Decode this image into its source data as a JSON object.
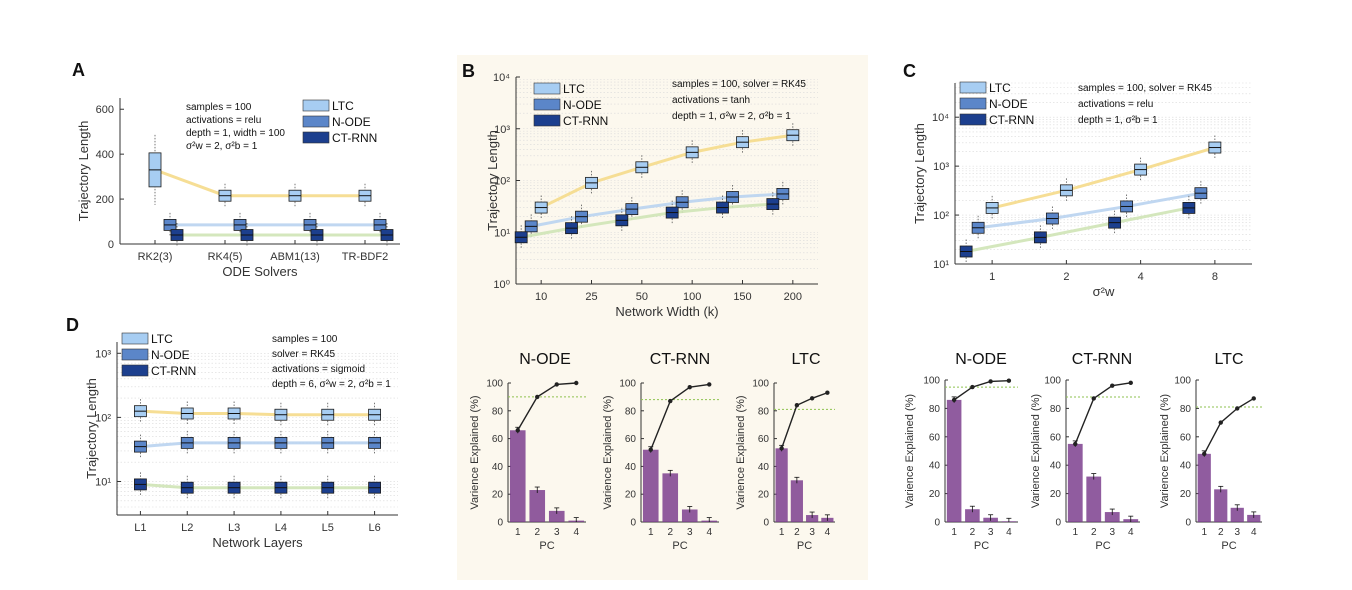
{
  "colors": {
    "ltc": "#a7cdf2",
    "node": "#5b86c9",
    "ctrnn": "#1c3f8e",
    "ltc_line": "#f5da8a",
    "node_line": "#b9d3ef",
    "ctrnn_line": "#cfe4b6",
    "bar": "#7c3f8e",
    "cum": "#222222",
    "thresh": "#8ec24f",
    "panelB_bg": "#fcf8ee"
  },
  "chart_data": [
    {
      "id": "A",
      "letter": "A",
      "type": "box",
      "xlabel": "ODE Solvers",
      "ylabel": "Trajectory Length",
      "categories": [
        "RK2(3)",
        "RK4(5)",
        "ABM1(13)",
        "TR-BDF2"
      ],
      "yscale": "linear",
      "ylim": [
        0,
        650
      ],
      "yticks": [
        "0",
        "200",
        "400",
        "600"
      ],
      "ytickvals": [
        0,
        200,
        400,
        600
      ],
      "annotations": [
        "samples = 100",
        "activations = relu",
        "depth = 1,  width = 100",
        "σ²w = 2,  σ²b = 1"
      ],
      "legend": [
        "LTC",
        "N-ODE",
        "CT-RNN"
      ],
      "series": [
        {
          "name": "LTC",
          "values": [
            330,
            215,
            215,
            215
          ]
        },
        {
          "name": "N-ODE",
          "values": [
            85,
            85,
            85,
            85
          ]
        },
        {
          "name": "CT-RNN",
          "values": [
            40,
            40,
            40,
            40
          ]
        }
      ]
    },
    {
      "id": "B",
      "letter": "B",
      "type": "box",
      "xlabel": "Network Width (k)",
      "ylabel": "Trajectory Length",
      "categories": [
        "10",
        "25",
        "50",
        "100",
        "150",
        "200"
      ],
      "yscale": "log",
      "ylim": [
        1,
        10000
      ],
      "yticks": [
        "10⁰",
        "10¹",
        "10²",
        "10³",
        "10⁴"
      ],
      "ytickvals": [
        1,
        10,
        100,
        1000,
        10000
      ],
      "annotations": [
        "samples = 100, solver = RK45",
        "activations = tanh",
        "depth = 1,  σ²w = 2,  σ²b = 1"
      ],
      "legend": [
        "LTC",
        "N-ODE",
        "CT-RNN"
      ],
      "series": [
        {
          "name": "LTC",
          "values": [
            30,
            90,
            180,
            350,
            550,
            750
          ]
        },
        {
          "name": "N-ODE",
          "values": [
            13,
            20,
            28,
            38,
            48,
            55
          ]
        },
        {
          "name": "CT-RNN",
          "values": [
            8,
            12,
            17,
            24,
            30,
            35
          ]
        }
      ]
    },
    {
      "id": "C",
      "letter": "C",
      "type": "box",
      "xlabel": "σ²w",
      "ylabel": "Trajectory Length",
      "categories": [
        "1",
        "2",
        "4",
        "8"
      ],
      "yscale": "log",
      "ylim": [
        10,
        50000
      ],
      "yticks": [
        "10¹",
        "10²",
        "10³",
        "10⁴"
      ],
      "ytickvals": [
        10,
        100,
        1000,
        10000
      ],
      "annotations": [
        "samples = 100, solver = RK45",
        "activations = relu",
        "depth = 1,  σ²b = 1"
      ],
      "legend": [
        "LTC",
        "N-ODE",
        "CT-RNN"
      ],
      "series": [
        {
          "name": "LTC",
          "values": [
            140,
            320,
            850,
            2400
          ]
        },
        {
          "name": "N-ODE",
          "values": [
            55,
            85,
            150,
            280
          ]
        },
        {
          "name": "CT-RNN",
          "values": [
            18,
            35,
            70,
            140
          ]
        }
      ]
    },
    {
      "id": "D",
      "letter": "D",
      "type": "box",
      "xlabel": "Network Layers",
      "ylabel": "Trajectory Length",
      "categories": [
        "L1",
        "L2",
        "L3",
        "L4",
        "L5",
        "L6"
      ],
      "yscale": "log",
      "ylim": [
        3,
        1500
      ],
      "yticks": [
        "10¹",
        "10²",
        "10³"
      ],
      "ytickvals": [
        10,
        100,
        1000
      ],
      "annotations": [
        "samples = 100",
        "solver = RK45",
        "activations = sigmoid",
        "depth = 6,  σ²w = 2,  σ²b = 1"
      ],
      "legend": [
        "LTC",
        "N-ODE",
        "CT-RNN"
      ],
      "series": [
        {
          "name": "LTC",
          "values": [
            125,
            115,
            115,
            110,
            110,
            110
          ]
        },
        {
          "name": "N-ODE",
          "values": [
            35,
            40,
            40,
            40,
            40,
            40
          ]
        },
        {
          "name": "CT-RNN",
          "values": [
            9,
            8,
            8,
            8,
            8,
            8
          ]
        }
      ]
    },
    {
      "id": "B-node",
      "type": "bar",
      "title": "N-ODE",
      "xlabel": "PC",
      "ylabel": "Varience Explained (%)",
      "categories": [
        "1",
        "2",
        "3",
        "4"
      ],
      "values": [
        66,
        23,
        8,
        1
      ],
      "cumulative": [
        66,
        90,
        99,
        100
      ],
      "threshold": 90,
      "ylim": [
        0,
        100
      ],
      "yticks": [
        0,
        20,
        40,
        60,
        80,
        100
      ]
    },
    {
      "id": "B-ctrnn",
      "type": "bar",
      "title": "CT-RNN",
      "xlabel": "PC",
      "ylabel": "Varience Explained (%)",
      "categories": [
        "1",
        "2",
        "3",
        "4"
      ],
      "values": [
        52,
        35,
        9,
        1
      ],
      "cumulative": [
        52,
        87,
        97,
        99
      ],
      "threshold": 88,
      "ylim": [
        0,
        100
      ],
      "yticks": [
        0,
        20,
        40,
        60,
        80,
        100
      ]
    },
    {
      "id": "B-ltc",
      "type": "bar",
      "title": "LTC",
      "xlabel": "PC",
      "ylabel": "Varience Explained (%)",
      "categories": [
        "1",
        "2",
        "3",
        "4"
      ],
      "values": [
        53,
        30,
        5,
        3
      ],
      "cumulative": [
        53,
        84,
        89,
        93
      ],
      "threshold": 81,
      "ylim": [
        0,
        100
      ],
      "yticks": [
        0,
        20,
        40,
        60,
        80,
        100
      ]
    },
    {
      "id": "C-node",
      "type": "bar",
      "title": "N-ODE",
      "xlabel": "PC",
      "ylabel": "Varience Explained (%)",
      "categories": [
        "1",
        "2",
        "3",
        "4"
      ],
      "values": [
        86,
        9,
        3,
        0.5
      ],
      "cumulative": [
        86,
        95,
        99,
        99.5
      ],
      "threshold": 95,
      "ylim": [
        0,
        100
      ],
      "yticks": [
        0,
        20,
        40,
        60,
        80,
        100
      ]
    },
    {
      "id": "C-ctrnn",
      "type": "bar",
      "title": "CT-RNN",
      "xlabel": "PC",
      "ylabel": "Varience Explained (%)",
      "categories": [
        "1",
        "2",
        "3",
        "4"
      ],
      "values": [
        55,
        32,
        7,
        2
      ],
      "cumulative": [
        55,
        87,
        96,
        98
      ],
      "threshold": 88,
      "ylim": [
        0,
        100
      ],
      "yticks": [
        0,
        20,
        40,
        60,
        80,
        100
      ]
    },
    {
      "id": "C-ltc",
      "type": "bar",
      "title": "LTC",
      "xlabel": "PC",
      "ylabel": "Varience Explained (%)",
      "categories": [
        "1",
        "2",
        "3",
        "4"
      ],
      "values": [
        48,
        23,
        10,
        5
      ],
      "cumulative": [
        48,
        70,
        80,
        87
      ],
      "threshold": 81,
      "ylim": [
        0,
        100
      ],
      "yticks": [
        0,
        20,
        40,
        60,
        80,
        100
      ]
    }
  ]
}
